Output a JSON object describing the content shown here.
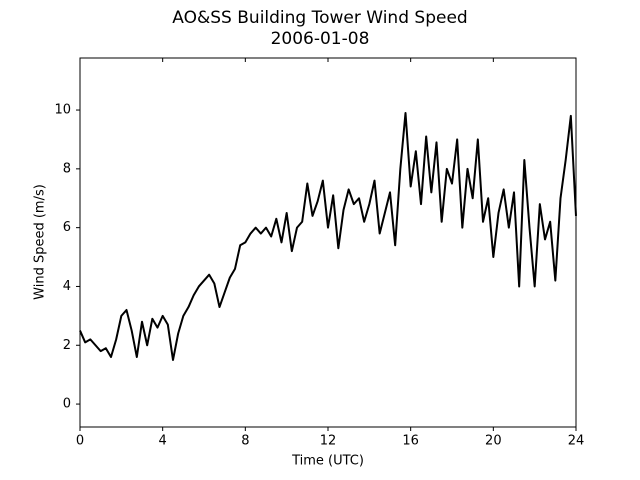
{
  "chart_data": {
    "type": "line",
    "title": "AO&SS Building Tower Wind Speed",
    "subtitle": "2006-01-08",
    "xlabel": "Time (UTC)",
    "ylabel": "Wind Speed (m/s)",
    "x": [
      0,
      0.25,
      0.5,
      0.75,
      1,
      1.25,
      1.5,
      1.75,
      2,
      2.25,
      2.5,
      2.75,
      3,
      3.25,
      3.5,
      3.75,
      4,
      4.25,
      4.5,
      4.75,
      5,
      5.25,
      5.5,
      5.75,
      6,
      6.25,
      6.5,
      6.75,
      7,
      7.25,
      7.5,
      7.75,
      8,
      8.25,
      8.5,
      8.75,
      9,
      9.25,
      9.5,
      9.75,
      10,
      10.25,
      10.5,
      10.75,
      11,
      11.25,
      11.5,
      11.75,
      12,
      12.25,
      12.5,
      12.75,
      13,
      13.25,
      13.5,
      13.75,
      14,
      14.25,
      14.5,
      14.75,
      15,
      15.25,
      15.5,
      15.75,
      16,
      16.25,
      16.5,
      16.75,
      17,
      17.25,
      17.5,
      17.75,
      18,
      18.25,
      18.5,
      18.75,
      19,
      19.25,
      19.5,
      19.75,
      20,
      20.25,
      20.5,
      20.75,
      21,
      21.25,
      21.5,
      21.75,
      22,
      22.25,
      22.5,
      22.75,
      23,
      23.25,
      23.5,
      23.75,
      24
    ],
    "values": [
      2.5,
      2.1,
      2.2,
      2.0,
      1.8,
      1.9,
      1.6,
      2.2,
      3.0,
      3.2,
      2.5,
      1.6,
      2.8,
      2.0,
      2.9,
      2.6,
      3.0,
      2.7,
      1.5,
      2.4,
      3.0,
      3.3,
      3.7,
      4.0,
      4.2,
      4.4,
      4.1,
      3.3,
      3.8,
      4.3,
      4.6,
      5.4,
      5.5,
      5.8,
      6.0,
      5.8,
      6.0,
      5.7,
      6.3,
      5.5,
      6.5,
      5.2,
      6.0,
      6.2,
      7.5,
      6.4,
      6.9,
      7.6,
      6.0,
      7.1,
      5.3,
      6.6,
      7.3,
      6.8,
      7.0,
      6.2,
      6.8,
      7.6,
      5.8,
      6.5,
      7.2,
      5.4,
      8.0,
      9.9,
      7.4,
      8.6,
      6.8,
      9.1,
      7.2,
      8.9,
      6.2,
      8.0,
      7.5,
      9.0,
      6.0,
      8.0,
      7.0,
      9.0,
      6.2,
      7.0,
      5.0,
      6.5,
      7.3,
      6.0,
      7.2,
      4.0,
      8.3,
      6.0,
      4.0,
      6.8,
      5.6,
      6.2,
      4.2,
      7.0,
      8.3,
      9.8,
      6.4
    ],
    "color": "#000000",
    "xlim": [
      0,
      24
    ],
    "xticks": [
      0,
      4,
      8,
      12,
      16,
      20,
      24
    ],
    "ylim": [
      -0.78,
      11.77
    ],
    "yticks": [
      0,
      2,
      4,
      6,
      8,
      10
    ]
  }
}
